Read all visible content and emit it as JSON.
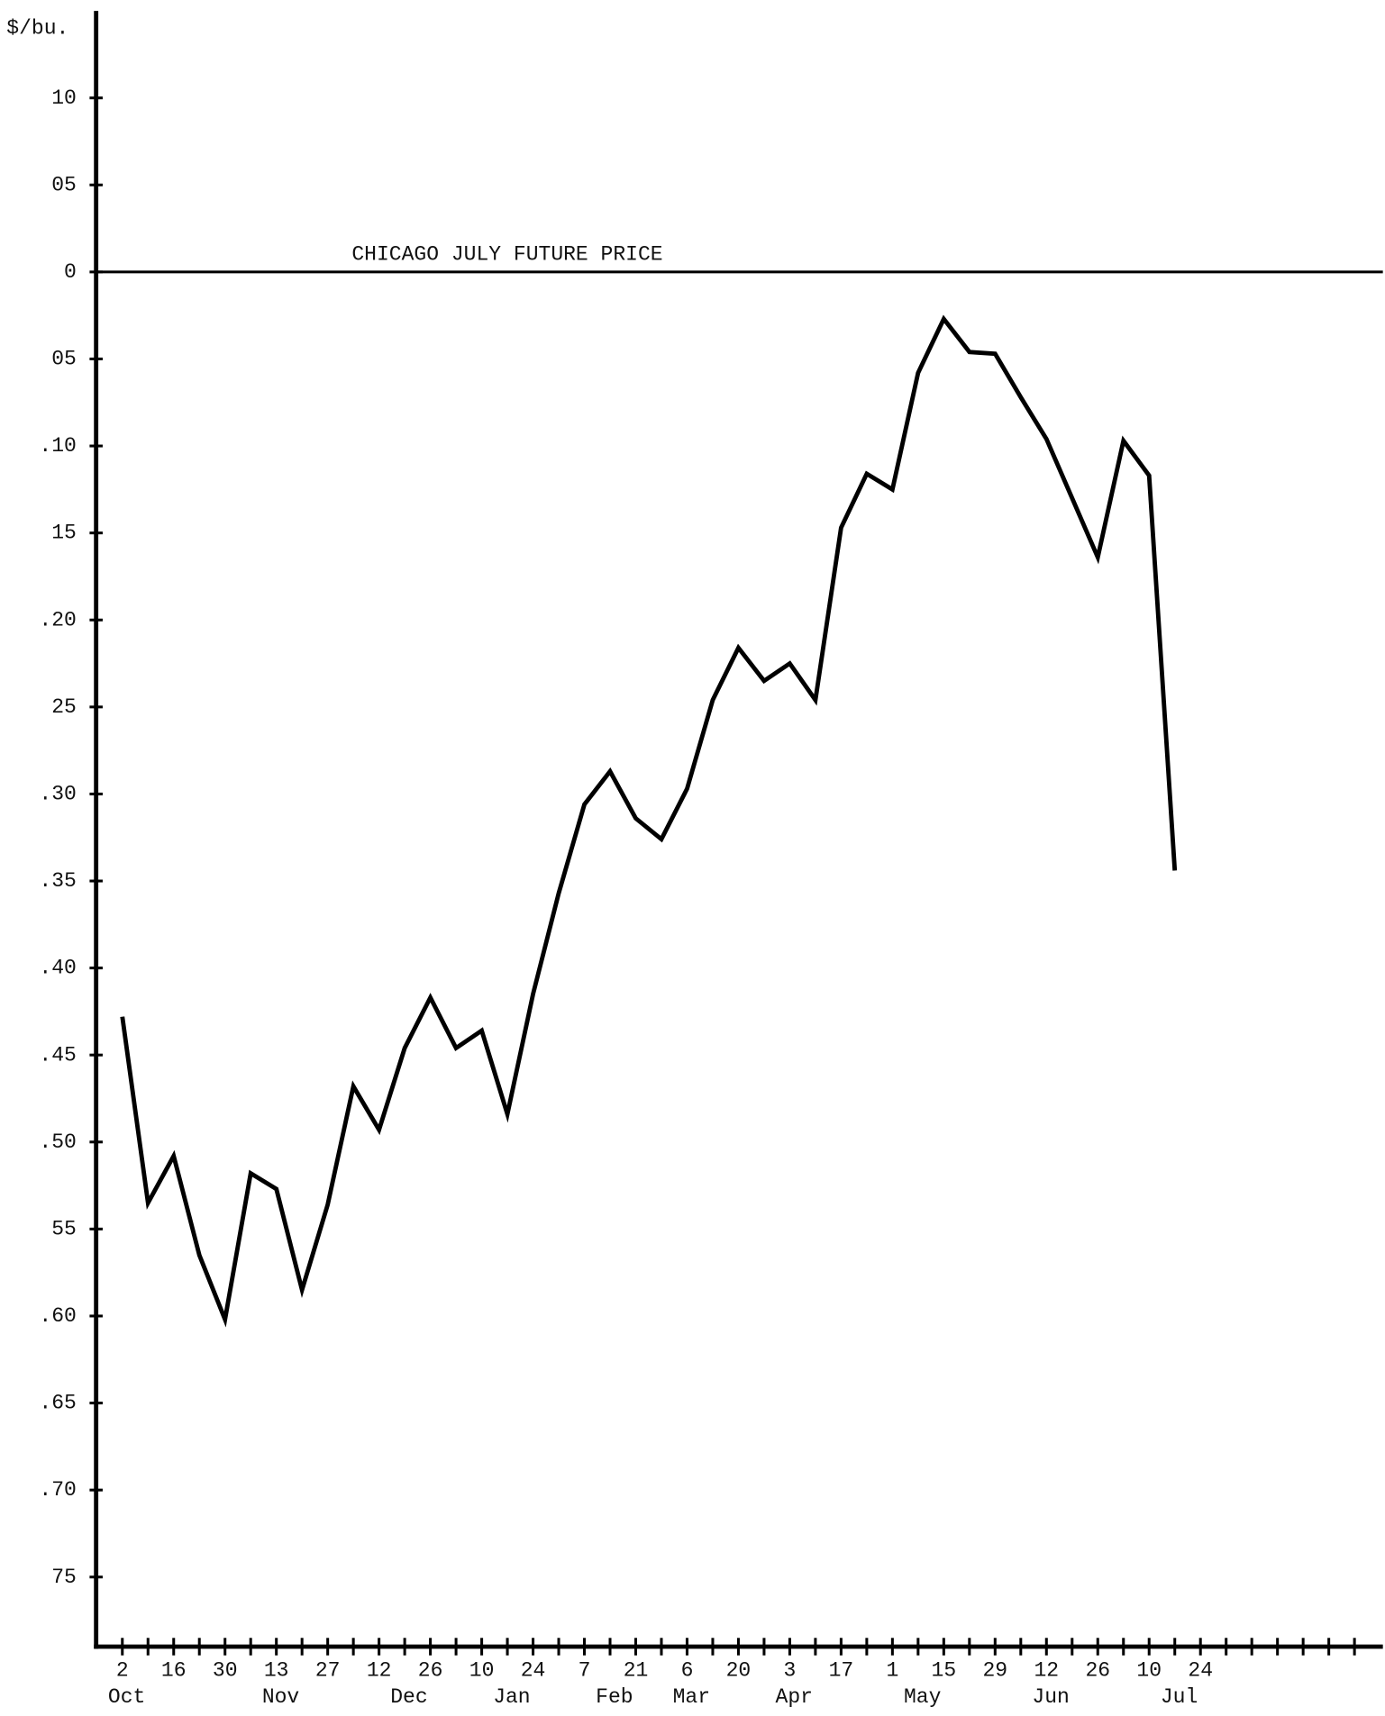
{
  "chart_data": {
    "type": "line",
    "y_label": "$/bu.",
    "reference_line": {
      "label": "CHICAGO JULY FUTURE PRICE",
      "value": 0
    },
    "color": "#000000",
    "categories": [
      "2",
      null,
      "16",
      null,
      "30",
      null,
      "13",
      null,
      "27",
      null,
      "12",
      null,
      "26",
      null,
      "10",
      null,
      "24",
      null,
      "7",
      null,
      "21",
      null,
      "6",
      null,
      "20",
      null,
      "3",
      null,
      "17",
      null,
      "1",
      null,
      "15",
      null,
      "29",
      null,
      "12",
      null,
      "26",
      null,
      "10",
      null,
      "24",
      null,
      null,
      null,
      null,
      null,
      null
    ],
    "months": [
      "Oct",
      null,
      null,
      null,
      null,
      null,
      "Nov",
      null,
      null,
      null,
      null,
      "Dec",
      null,
      null,
      null,
      "Jan",
      null,
      null,
      null,
      "Feb",
      null,
      null,
      "Mar",
      null,
      null,
      null,
      "Apr",
      null,
      null,
      null,
      null,
      "May",
      null,
      null,
      null,
      null,
      "Jun",
      null,
      null,
      null,
      null,
      "Jul",
      null,
      null,
      null,
      null,
      null,
      null,
      null
    ],
    "values": [
      -0.428,
      -0.535,
      -0.508,
      -0.565,
      -0.602,
      -0.518,
      -0.527,
      -0.585,
      -0.536,
      -0.468,
      -0.493,
      -0.446,
      -0.417,
      -0.446,
      -0.436,
      -0.484,
      -0.415,
      -0.357,
      -0.306,
      -0.287,
      -0.314,
      -0.326,
      -0.297,
      -0.246,
      -0.216,
      -0.235,
      -0.225,
      -0.246,
      -0.147,
      -0.116,
      -0.125,
      -0.058,
      -0.027,
      -0.046,
      -0.047,
      -0.072,
      -0.096,
      -0.13,
      -0.164,
      -0.097,
      -0.117,
      -0.344,
      null,
      null,
      null,
      null,
      null,
      null,
      null
    ],
    "ylim": [
      -0.79,
      0.15
    ],
    "yticks": [
      {
        "value": 0.1,
        "label": "10"
      },
      {
        "value": 0.05,
        "label": "05"
      },
      0,
      {
        "value": -0.05,
        "label": "05"
      },
      {
        "value": -0.1,
        "label": ".10"
      },
      {
        "value": -0.15,
        "label": "15"
      },
      {
        "value": -0.2,
        "label": ".20"
      },
      {
        "value": -0.25,
        "label": "25"
      },
      {
        "value": -0.3,
        "label": ".30"
      },
      {
        "value": -0.35,
        "label": ".35"
      },
      {
        "value": -0.4,
        "label": ".40"
      },
      {
        "value": -0.45,
        "label": ".45"
      },
      {
        "value": -0.5,
        "label": ".50"
      },
      {
        "value": -0.55,
        "label": "55"
      },
      {
        "value": -0.6,
        "label": ".60"
      },
      {
        "value": -0.65,
        "label": ".65"
      },
      {
        "value": -0.7,
        "label": ".70"
      },
      {
        "value": -0.75,
        "label": "75"
      }
    ]
  }
}
